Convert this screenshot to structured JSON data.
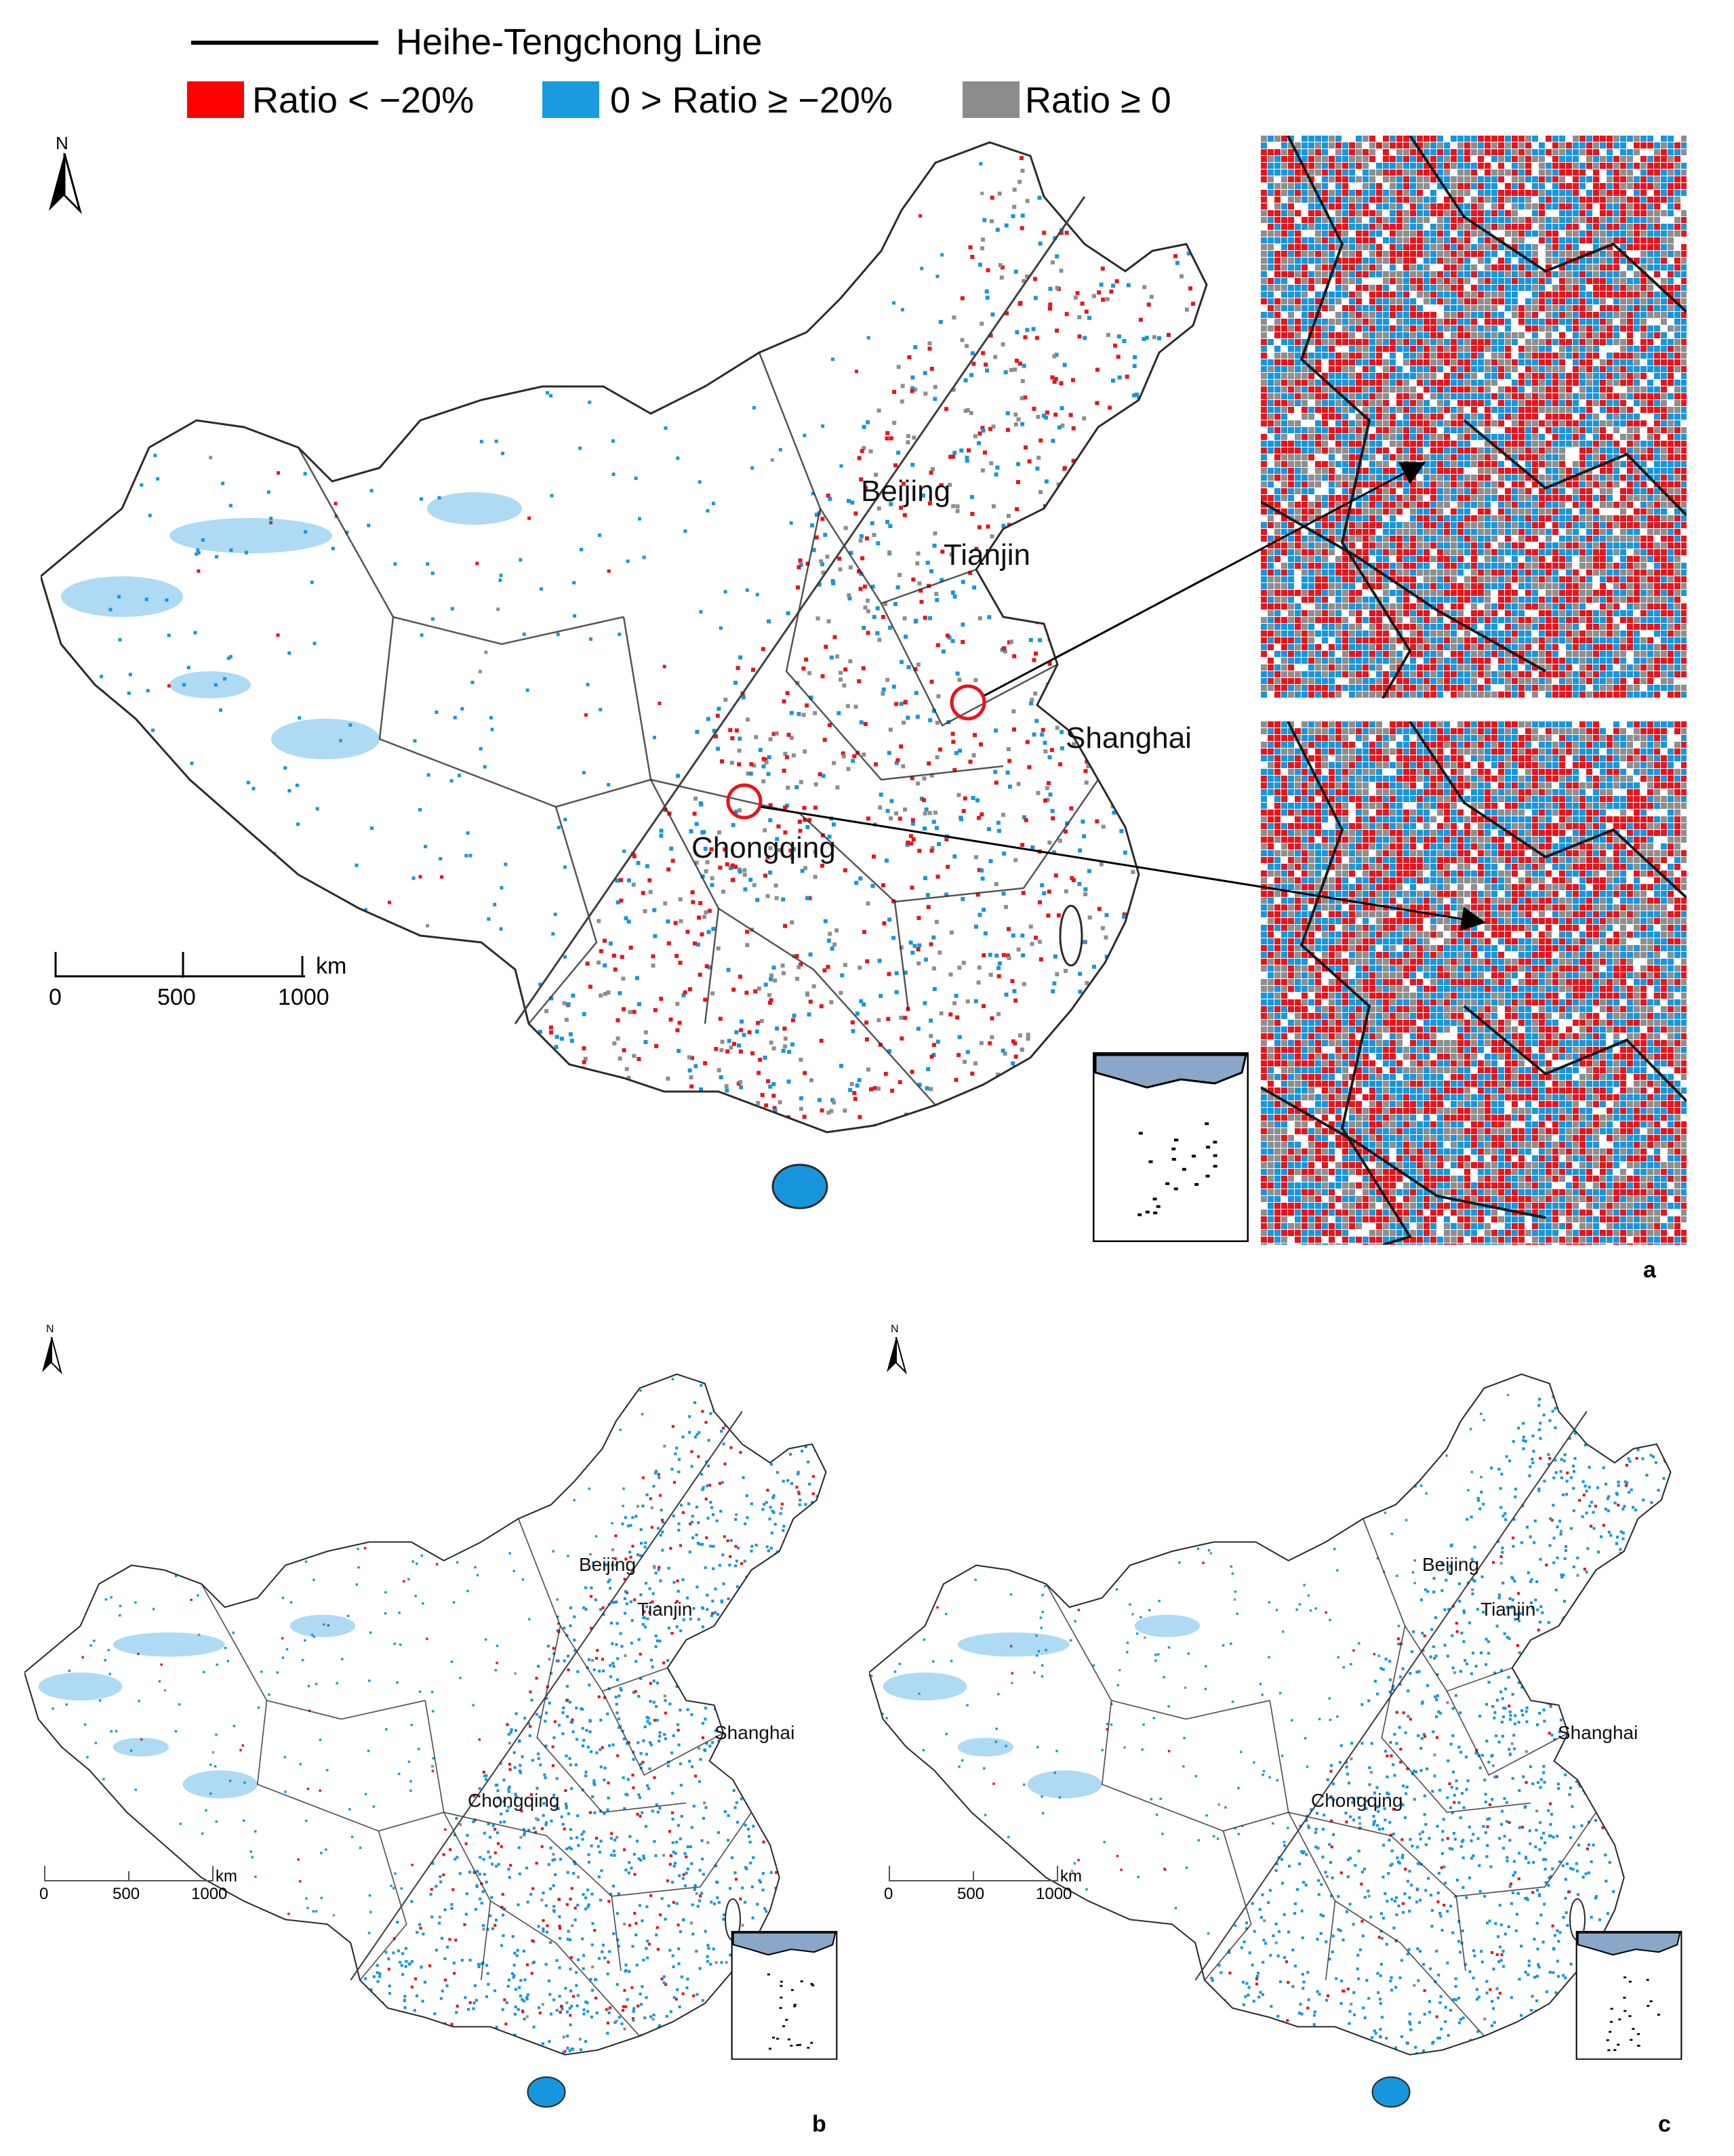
{
  "legend": {
    "line_label": "Heihe-Tengchong Line",
    "items": [
      {
        "label": "Ratio < −20%",
        "color": "#ff0000"
      },
      {
        "label": "0 > Ratio ≥ −20%",
        "color": "#1a9ae0"
      },
      {
        "label": "Ratio ≥ 0",
        "color": "#8c8c8c"
      }
    ]
  },
  "north_label": "N",
  "scale": {
    "labels": [
      "0",
      "500",
      "1000"
    ],
    "unit": "km"
  },
  "cities": [
    "Beijing",
    "Tianjin",
    "Shanghai",
    "Chongqing"
  ],
  "panels": [
    {
      "letter": "a",
      "mix": {
        "red": 0.38,
        "blue": 0.34,
        "gray": 0.28
      }
    },
    {
      "letter": "b",
      "mix": {
        "red": 0.18,
        "blue": 0.78,
        "gray": 0.04
      }
    },
    {
      "letter": "c",
      "mix": {
        "red": 0.08,
        "blue": 0.9,
        "gray": 0.02
      }
    }
  ],
  "colors": {
    "red": "#e8141c",
    "blue": "#1796dd",
    "gray": "#8e8e8e",
    "border": "#2b2b2b",
    "line": "#404040"
  }
}
